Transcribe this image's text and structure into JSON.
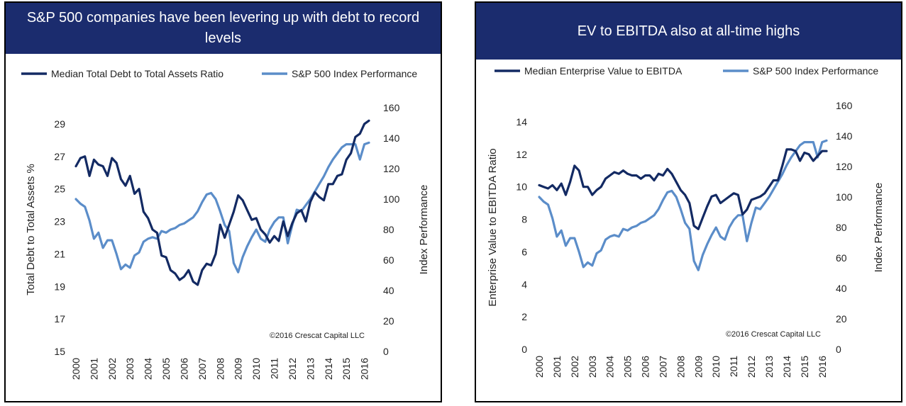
{
  "colors": {
    "banner": "#1b2c6e",
    "debt_line": "#132a63",
    "index_line": "#5b8dc9"
  },
  "chart_data": [
    {
      "type": "line",
      "title": "S&P 500 companies have been levering up with debt to record levels",
      "ylabel": "Total Debt to Total Assets %",
      "y2label": "Index Performance",
      "ylim": [
        15,
        30
      ],
      "y2lim": [
        0,
        160
      ],
      "yticks": [
        "15",
        "17",
        "19",
        "21",
        "23",
        "25",
        "27",
        "29"
      ],
      "y2ticks": [
        "0",
        "20",
        "40",
        "60",
        "80",
        "100",
        "120",
        "140",
        "160"
      ],
      "xticks": [
        "2000",
        "2001",
        "2002",
        "2003",
        "2004",
        "2005",
        "2006",
        "2007",
        "2008",
        "2009",
        "2010",
        "2011",
        "2012",
        "2013",
        "2014",
        "2015",
        "2016"
      ],
      "legend": "top",
      "credit": "©2016 Crescat Capital LLC",
      "series": [
        {
          "name": "Median Total Debt to Total Assets Ratio",
          "axis": "left",
          "x": [
            2000,
            2000.25,
            2000.5,
            2000.75,
            2001,
            2001.25,
            2001.5,
            2001.75,
            2002,
            2002.25,
            2002.5,
            2002.75,
            2003,
            2003.25,
            2003.5,
            2003.75,
            2004,
            2004.25,
            2004.5,
            2004.75,
            2005,
            2005.25,
            2005.5,
            2005.75,
            2006,
            2006.25,
            2006.5,
            2006.75,
            2007,
            2007.25,
            2007.5,
            2007.75,
            2008,
            2008.25,
            2008.5,
            2008.75,
            2009,
            2009.25,
            2009.5,
            2009.75,
            2010,
            2010.25,
            2010.5,
            2010.75,
            2011,
            2011.25,
            2011.5,
            2011.75,
            2012,
            2012.25,
            2012.5,
            2012.75,
            2013,
            2013.25,
            2013.5,
            2013.75,
            2014,
            2014.25,
            2014.5,
            2014.75,
            2015,
            2015.25,
            2015.5,
            2015.75,
            2016,
            2016.25
          ],
          "values": [
            26.4,
            26.9,
            27.0,
            25.8,
            26.8,
            26.5,
            26.4,
            25.8,
            26.9,
            26.6,
            25.6,
            25.2,
            25.8,
            24.7,
            25.0,
            23.6,
            23.2,
            22.5,
            22.3,
            20.9,
            20.8,
            20.0,
            19.8,
            19.4,
            19.6,
            20.0,
            19.3,
            19.1,
            20.0,
            20.4,
            20.3,
            21.0,
            22.8,
            22.0,
            22.8,
            23.6,
            24.6,
            24.3,
            23.7,
            23.1,
            23.2,
            22.5,
            22.2,
            21.7,
            22.1,
            21.8,
            23.0,
            22.1,
            22.9,
            23.5,
            23.7,
            23.0,
            24.2,
            24.8,
            24.5,
            24.3,
            25.3,
            25.3,
            25.8,
            25.9,
            26.8,
            27.2,
            28.2,
            28.4,
            29.0,
            29.2
          ]
        },
        {
          "name": "S&P 500 Index Performance",
          "axis": "right",
          "x": [
            2000,
            2000.25,
            2000.5,
            2000.75,
            2001,
            2001.25,
            2001.5,
            2001.75,
            2002,
            2002.25,
            2002.5,
            2002.75,
            2003,
            2003.25,
            2003.5,
            2003.75,
            2004,
            2004.25,
            2004.5,
            2004.75,
            2005,
            2005.25,
            2005.5,
            2005.75,
            2006,
            2006.25,
            2006.5,
            2006.75,
            2007,
            2007.25,
            2007.5,
            2007.75,
            2008,
            2008.25,
            2008.5,
            2008.75,
            2009,
            2009.25,
            2009.5,
            2009.75,
            2010,
            2010.25,
            2010.5,
            2010.75,
            2011,
            2011.25,
            2011.5,
            2011.75,
            2012,
            2012.25,
            2012.5,
            2012.75,
            2013,
            2013.25,
            2013.5,
            2013.75,
            2014,
            2014.25,
            2014.5,
            2014.75,
            2015,
            2015.25,
            2015.5,
            2015.75,
            2016,
            2016.25
          ],
          "values": [
            100,
            97,
            95,
            86,
            74,
            78,
            68,
            73,
            73,
            64,
            54,
            57,
            55,
            63,
            65,
            72,
            74,
            75,
            74,
            79,
            78,
            80,
            81,
            83,
            84,
            86,
            88,
            92,
            98,
            103,
            104,
            100,
            92,
            83,
            79,
            58,
            52,
            62,
            69,
            75,
            80,
            74,
            72,
            80,
            85,
            88,
            88,
            71,
            83,
            93,
            92,
            96,
            100,
            105,
            110,
            115,
            121,
            126,
            130,
            134,
            136,
            136,
            136,
            126,
            136,
            137
          ]
        }
      ]
    },
    {
      "type": "line",
      "title": "EV to EBITDA also at all-time highs",
      "ylabel": "Enterprise Value to EBITDA Ratio",
      "y2label": "Index Performance",
      "ylim": [
        0,
        15
      ],
      "y2lim": [
        0,
        160
      ],
      "yticks": [
        "0",
        "2",
        "4",
        "6",
        "8",
        "10",
        "12",
        "14"
      ],
      "y2ticks": [
        "0",
        "20",
        "40",
        "60",
        "80",
        "100",
        "120",
        "140",
        "160"
      ],
      "xticks": [
        "2000",
        "2001",
        "2002",
        "2003",
        "2004",
        "2005",
        "2006",
        "2007",
        "2008",
        "2009",
        "2010",
        "2011",
        "2012",
        "2013",
        "2014",
        "2015",
        "2016"
      ],
      "legend": "top",
      "credit": "©2016 Crescat Capital LLC",
      "series": [
        {
          "name": "Median Enterprise Value to EBITDA",
          "axis": "left",
          "x": [
            2000,
            2000.25,
            2000.5,
            2000.75,
            2001,
            2001.25,
            2001.5,
            2001.75,
            2002,
            2002.25,
            2002.5,
            2002.75,
            2003,
            2003.25,
            2003.5,
            2003.75,
            2004,
            2004.25,
            2004.5,
            2004.75,
            2005,
            2005.25,
            2005.5,
            2005.75,
            2006,
            2006.25,
            2006.5,
            2006.75,
            2007,
            2007.25,
            2007.5,
            2007.75,
            2008,
            2008.25,
            2008.5,
            2008.75,
            2009,
            2009.25,
            2009.5,
            2009.75,
            2010,
            2010.25,
            2010.5,
            2010.75,
            2011,
            2011.25,
            2011.5,
            2011.75,
            2012,
            2012.25,
            2012.5,
            2012.75,
            2013,
            2013.25,
            2013.5,
            2013.75,
            2014,
            2014.25,
            2014.5,
            2014.75,
            2015,
            2015.25,
            2015.5,
            2015.75,
            2016,
            2016.25
          ],
          "values": [
            10.1,
            10.0,
            9.9,
            10.1,
            9.8,
            10.2,
            9.5,
            10.3,
            11.3,
            11.0,
            10.0,
            10.0,
            9.5,
            9.8,
            10.0,
            10.5,
            10.7,
            10.9,
            10.8,
            11.0,
            10.8,
            10.7,
            10.7,
            10.5,
            10.7,
            10.7,
            10.4,
            10.8,
            10.7,
            11.1,
            10.8,
            10.3,
            9.8,
            9.5,
            9.0,
            7.6,
            7.4,
            8.1,
            8.8,
            9.4,
            9.5,
            9.0,
            9.2,
            9.4,
            9.6,
            9.5,
            8.3,
            8.6,
            9.2,
            9.3,
            9.4,
            9.6,
            10.0,
            10.4,
            10.4,
            11.3,
            12.3,
            12.3,
            12.2,
            11.6,
            12.1,
            12.0,
            11.6,
            11.9,
            12.2,
            12.2
          ]
        },
        {
          "name": "S&P 500 Index Performance",
          "axis": "right",
          "x": [
            2000,
            2000.25,
            2000.5,
            2000.75,
            2001,
            2001.25,
            2001.5,
            2001.75,
            2002,
            2002.25,
            2002.5,
            2002.75,
            2003,
            2003.25,
            2003.5,
            2003.75,
            2004,
            2004.25,
            2004.5,
            2004.75,
            2005,
            2005.25,
            2005.5,
            2005.75,
            2006,
            2006.25,
            2006.5,
            2006.75,
            2007,
            2007.25,
            2007.5,
            2007.75,
            2008,
            2008.25,
            2008.5,
            2008.75,
            2009,
            2009.25,
            2009.5,
            2009.75,
            2010,
            2010.25,
            2010.5,
            2010.75,
            2011,
            2011.25,
            2011.5,
            2011.75,
            2012,
            2012.25,
            2012.5,
            2012.75,
            2013,
            2013.25,
            2013.5,
            2013.75,
            2014,
            2014.25,
            2014.5,
            2014.75,
            2015,
            2015.25,
            2015.5,
            2015.75,
            2016,
            2016.25
          ],
          "values": [
            100,
            97,
            95,
            86,
            74,
            78,
            68,
            73,
            73,
            64,
            54,
            57,
            55,
            63,
            65,
            72,
            74,
            75,
            74,
            79,
            78,
            80,
            81,
            83,
            84,
            86,
            88,
            92,
            98,
            103,
            104,
            100,
            92,
            83,
            79,
            58,
            52,
            62,
            69,
            75,
            80,
            74,
            72,
            80,
            85,
            88,
            88,
            71,
            83,
            93,
            92,
            96,
            100,
            105,
            110,
            115,
            121,
            126,
            130,
            134,
            136,
            136,
            136,
            126,
            136,
            137
          ]
        }
      ]
    }
  ]
}
